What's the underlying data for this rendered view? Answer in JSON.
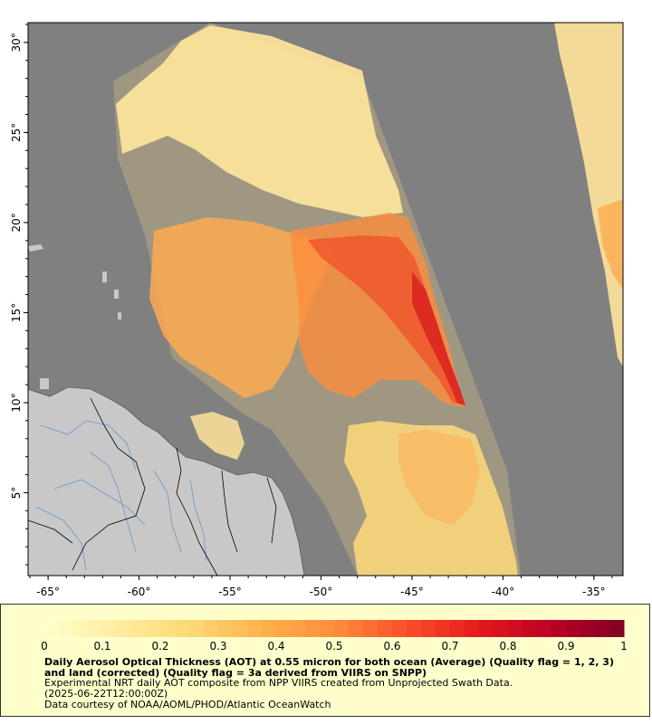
{
  "map": {
    "lon_ticks": [
      "-65°",
      "-60°",
      "-55°",
      "-50°",
      "-45°",
      "-40°",
      "-35°"
    ],
    "lat_ticks": [
      "5°",
      "10°",
      "15°",
      "20°",
      "25°",
      "30°"
    ],
    "lon_values": [
      -65,
      -60,
      -55,
      -50,
      -45,
      -40,
      -35
    ],
    "lat_values": [
      5,
      10,
      15,
      20,
      25,
      30
    ],
    "lon_range": [
      -66.1,
      -33.4
    ],
    "lat_range": [
      0.4,
      31.1
    ],
    "background_color": "#808080",
    "land_color": "#c8c8c8",
    "river_color": "#6699cc",
    "border_color": "#000000"
  },
  "colorbar": {
    "ticks": [
      "0",
      "0.1",
      "0.2",
      "0.3",
      "0.4",
      "0.5",
      "0.6",
      "0.7",
      "0.8",
      "0.9",
      "1"
    ],
    "range": [
      0,
      1
    ],
    "colors": [
      "#ffffcc",
      "#ffeda0",
      "#fed976",
      "#feb24c",
      "#fd8d3c",
      "#fc4e2a",
      "#e31a1c",
      "#bd0026",
      "#800026"
    ]
  },
  "caption": {
    "title": "Daily Aerosol Optical Thickness (AOT) at 0.55 micron for both ocean (Average) (Quality flag = 1, 2, 3) and land (corrected) (Quality flag = 3a derived from VIIRS on SNPP)",
    "line1": "Experimental NRT daily AOT composite from NPP VIIRS created from Unprojected Swath Data.",
    "line2": "(2025-06-22T12:00:00Z)",
    "line3": "Data courtesy of NOAA/AOML/PHOD/Atlantic OceanWatch"
  }
}
